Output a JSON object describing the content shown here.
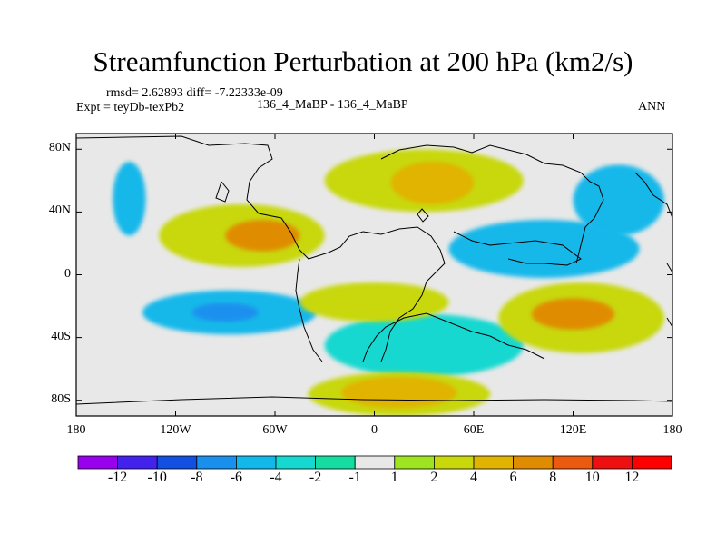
{
  "chart_data": {
    "type": "heatmap",
    "title": "Streamfunction Perturbation at 200 hPa (km2/s)",
    "stats": "rmsd= 2.62893 diff= -7.22333e-09",
    "left_label": "Expt = teyDb-texPb2",
    "center_label": "136_4_MaBP - 136_4_MaBP",
    "right_label": "ANN",
    "x_ticks": [
      "180",
      "120W",
      "60W",
      "0",
      "60E",
      "120E",
      "180"
    ],
    "y_ticks": [
      "80N",
      "40N",
      "0",
      "40S",
      "80S"
    ],
    "xlim": [
      -180,
      180
    ],
    "ylim": [
      -90,
      90
    ],
    "colorbar": {
      "labels": [
        "-12",
        "-10",
        "-8",
        "-6",
        "-4",
        "-2",
        "-1",
        "1",
        "2",
        "4",
        "6",
        "8",
        "10",
        "12"
      ],
      "colors": [
        "#9900ee",
        "#4422ee",
        "#1150e0",
        "#1a90ee",
        "#12b8ea",
        "#15d8d0",
        "#15dca0",
        "#e8e8e8",
        "#9ee420",
        "#c8d80a",
        "#e0b400",
        "#e08c00",
        "#ec5a10",
        "#ee1010",
        "#ff0000"
      ]
    },
    "regions": [
      {
        "level": "-4",
        "lon": [
          -158,
          -138
        ],
        "lat": [
          25,
          72
        ]
      },
      {
        "level": "-4",
        "lon": [
          -140,
          -35
        ],
        "lat": [
          -38,
          -10
        ]
      },
      {
        "level": "-6",
        "lon": [
          -110,
          -70
        ],
        "lat": [
          -30,
          -18
        ]
      },
      {
        "level": "-4",
        "lon": [
          45,
          160
        ],
        "lat": [
          -2,
          35
        ]
      },
      {
        "level": "-4",
        "lon": [
          120,
          175
        ],
        "lat": [
          25,
          70
        ]
      },
      {
        "level": "-2",
        "lon": [
          -30,
          90
        ],
        "lat": [
          -65,
          -25
        ]
      },
      {
        "level": "2",
        "lon": [
          -130,
          -30
        ],
        "lat": [
          5,
          45
        ]
      },
      {
        "level": "6",
        "lon": [
          -90,
          -45
        ],
        "lat": [
          15,
          35
        ]
      },
      {
        "level": "2",
        "lon": [
          -30,
          90
        ],
        "lat": [
          40,
          80
        ]
      },
      {
        "level": "4",
        "lon": [
          10,
          60
        ],
        "lat": [
          45,
          72
        ]
      },
      {
        "level": "2",
        "lon": [
          75,
          175
        ],
        "lat": [
          -50,
          -5
        ]
      },
      {
        "level": "6",
        "lon": [
          95,
          145
        ],
        "lat": [
          -35,
          -15
        ]
      },
      {
        "level": "2",
        "lon": [
          -40,
          70
        ],
        "lat": [
          -90,
          -62
        ]
      },
      {
        "level": "4",
        "lon": [
          -20,
          50
        ],
        "lat": [
          -85,
          -65
        ]
      },
      {
        "level": "2",
        "lon": [
          -45,
          45
        ],
        "lat": [
          -30,
          -5
        ]
      }
    ]
  }
}
